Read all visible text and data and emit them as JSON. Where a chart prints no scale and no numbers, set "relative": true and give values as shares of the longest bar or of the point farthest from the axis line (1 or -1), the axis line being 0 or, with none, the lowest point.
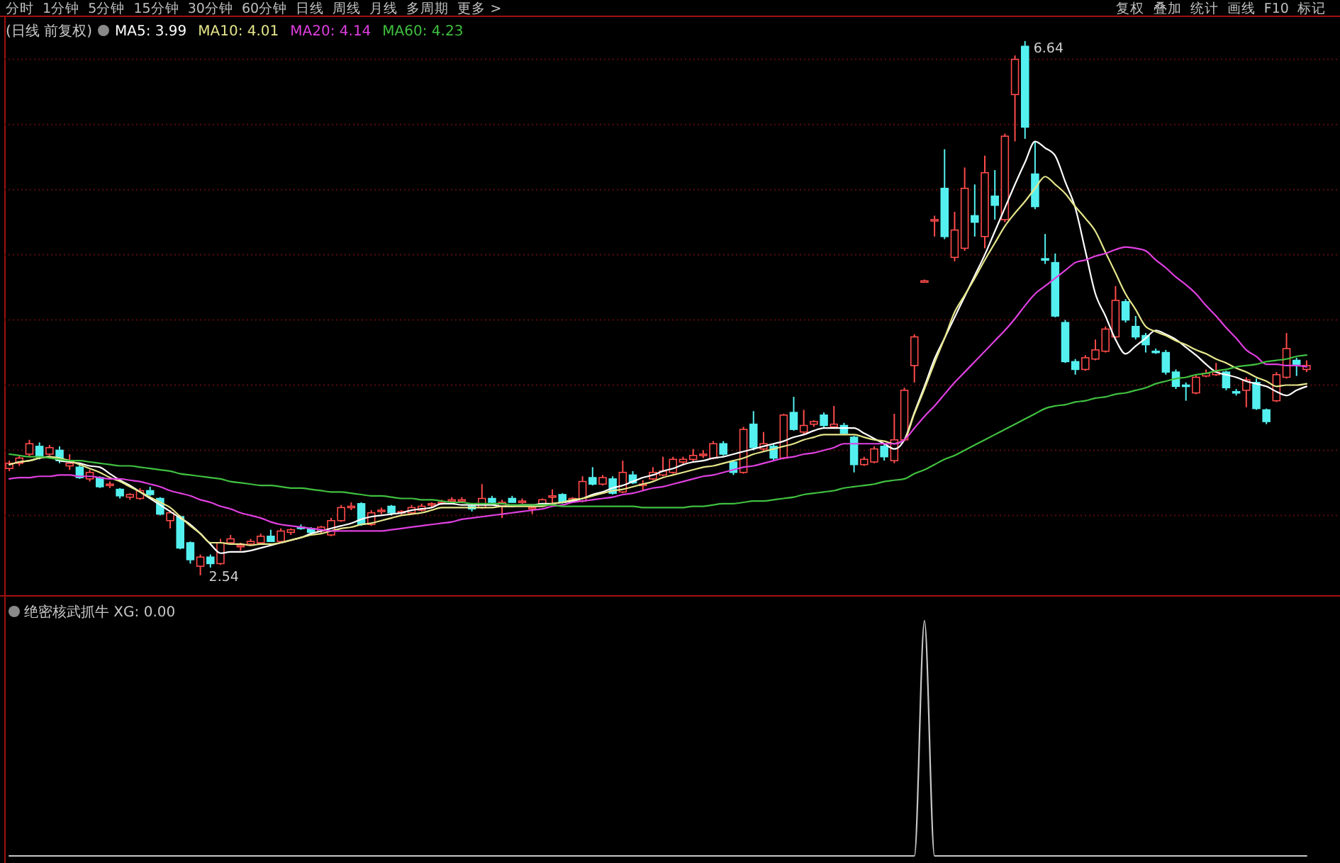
{
  "chart_data": [
    {
      "type": "candlestick",
      "title": "(日线 前复权)",
      "legend": "top left",
      "grid": "y",
      "yticks": [
        {
          "value": 3.0,
          "label": null
        },
        {
          "value": 3.5,
          "label": null
        },
        {
          "value": 4.0,
          "label": null
        },
        {
          "value": 4.5,
          "label": null
        },
        {
          "value": 5.0,
          "label": null
        },
        {
          "value": 5.5,
          "label": null
        },
        {
          "value": 6.0,
          "label": null
        },
        {
          "value": 6.5,
          "label": null
        }
      ],
      "categories": [
        null,
        null,
        null,
        null,
        null,
        null,
        null,
        null,
        null,
        null,
        null,
        null,
        null,
        null,
        null,
        null,
        null,
        null,
        null,
        null,
        null,
        null,
        null,
        null,
        null,
        null,
        null,
        null,
        null,
        null,
        null,
        null,
        null,
        null,
        null,
        null,
        null,
        null,
        null,
        null,
        null,
        null,
        null,
        null,
        null,
        null,
        null,
        null,
        null,
        null,
        null,
        null,
        null,
        null,
        null,
        null,
        null,
        null,
        null,
        null,
        null,
        null,
        null,
        null,
        null,
        null,
        null,
        null,
        null,
        null,
        null,
        null,
        null,
        null,
        null,
        null,
        null,
        null,
        null,
        null,
        null,
        null,
        null,
        null,
        null,
        null,
        null,
        null,
        null,
        null,
        null,
        null,
        null,
        null,
        null,
        null,
        null,
        null,
        null,
        null,
        null,
        null,
        null,
        null,
        null,
        null,
        null,
        null,
        null,
        null,
        null,
        null,
        null,
        null,
        null,
        null,
        null,
        null,
        null,
        null,
        null,
        null,
        null,
        null,
        null,
        null,
        null,
        null,
        null,
        null
      ],
      "ohlc": [
        [
          3.36,
          3.42,
          3.34,
          3.4
        ],
        [
          3.4,
          3.46,
          3.38,
          3.44
        ],
        [
          3.47,
          3.58,
          3.45,
          3.55
        ],
        [
          3.53,
          3.56,
          3.43,
          3.45
        ],
        [
          3.47,
          3.54,
          3.46,
          3.52
        ],
        [
          3.5,
          3.53,
          3.4,
          3.42
        ],
        [
          3.38,
          3.47,
          3.35,
          3.4
        ],
        [
          3.37,
          3.39,
          3.28,
          3.29
        ],
        [
          3.28,
          3.35,
          3.26,
          3.33
        ],
        [
          3.29,
          3.3,
          3.21,
          3.22
        ],
        [
          3.23,
          3.26,
          3.21,
          3.24
        ],
        [
          3.2,
          3.21,
          3.13,
          3.15
        ],
        [
          3.14,
          3.17,
          3.12,
          3.16
        ],
        [
          3.13,
          3.21,
          3.12,
          3.19
        ],
        [
          3.19,
          3.22,
          3.15,
          3.16
        ],
        [
          3.13,
          3.14,
          3.0,
          3.01
        ],
        [
          2.96,
          3.04,
          2.9,
          3.02
        ],
        [
          2.99,
          3.0,
          2.74,
          2.75
        ],
        [
          2.79,
          2.8,
          2.63,
          2.66
        ],
        [
          2.61,
          2.7,
          2.54,
          2.68
        ],
        [
          2.68,
          2.7,
          2.6,
          2.63
        ],
        [
          2.63,
          2.82,
          2.62,
          2.79
        ],
        [
          2.79,
          2.85,
          2.78,
          2.82
        ],
        [
          2.76,
          2.79,
          2.73,
          2.77
        ],
        [
          2.78,
          2.82,
          2.77,
          2.8
        ],
        [
          2.79,
          2.86,
          2.78,
          2.84
        ],
        [
          2.84,
          2.89,
          2.8,
          2.8
        ],
        [
          2.8,
          2.9,
          2.79,
          2.88
        ],
        [
          2.87,
          2.9,
          2.85,
          2.89
        ],
        [
          2.91,
          2.93,
          2.89,
          2.9
        ],
        [
          2.9,
          2.91,
          2.86,
          2.87
        ],
        [
          2.88,
          2.92,
          2.86,
          2.91
        ],
        [
          2.85,
          2.98,
          2.84,
          2.96
        ],
        [
          2.96,
          3.08,
          2.95,
          3.06
        ],
        [
          3.06,
          3.1,
          3.04,
          3.07
        ],
        [
          3.09,
          3.1,
          2.92,
          2.93
        ],
        [
          2.93,
          3.04,
          2.92,
          3.02
        ],
        [
          3.03,
          3.06,
          3.01,
          3.04
        ],
        [
          3.07,
          3.08,
          3.0,
          3.02
        ],
        [
          3.02,
          3.04,
          3.0,
          3.03
        ],
        [
          3.02,
          3.08,
          3.01,
          3.06
        ],
        [
          3.04,
          3.09,
          3.03,
          3.07
        ],
        [
          3.08,
          3.1,
          3.06,
          3.09
        ],
        [
          3.1,
          3.12,
          3.08,
          3.1
        ],
        [
          3.11,
          3.14,
          3.1,
          3.12
        ],
        [
          3.12,
          3.14,
          3.1,
          3.12
        ],
        [
          3.07,
          3.09,
          3.03,
          3.05
        ],
        [
          3.06,
          3.24,
          3.05,
          3.13
        ],
        [
          3.13,
          3.15,
          3.09,
          3.1
        ],
        [
          3.07,
          3.12,
          2.98,
          3.1
        ],
        [
          3.13,
          3.15,
          3.1,
          3.1
        ],
        [
          3.11,
          3.13,
          3.09,
          3.11
        ],
        [
          3.05,
          3.07,
          3.01,
          3.06
        ],
        [
          3.08,
          3.13,
          3.07,
          3.12
        ],
        [
          3.15,
          3.2,
          3.08,
          3.15
        ],
        [
          3.16,
          3.17,
          3.09,
          3.1
        ],
        [
          3.11,
          3.14,
          3.1,
          3.13
        ],
        [
          3.11,
          3.3,
          3.1,
          3.26
        ],
        [
          3.29,
          3.37,
          3.23,
          3.24
        ],
        [
          3.24,
          3.31,
          3.23,
          3.29
        ],
        [
          3.28,
          3.3,
          3.16,
          3.17
        ],
        [
          3.18,
          3.42,
          3.17,
          3.33
        ],
        [
          3.31,
          3.34,
          3.24,
          3.25
        ],
        [
          3.23,
          3.27,
          3.19,
          3.24
        ],
        [
          3.28,
          3.37,
          3.27,
          3.33
        ],
        [
          3.31,
          3.45,
          3.3,
          3.34
        ],
        [
          3.33,
          3.45,
          3.32,
          3.43
        ],
        [
          3.41,
          3.45,
          3.39,
          3.43
        ],
        [
          3.43,
          3.51,
          3.41,
          3.46
        ],
        [
          3.46,
          3.5,
          3.44,
          3.47
        ],
        [
          3.44,
          3.57,
          3.43,
          3.55
        ],
        [
          3.55,
          3.57,
          3.46,
          3.47
        ],
        [
          3.41,
          3.42,
          3.31,
          3.33
        ],
        [
          3.33,
          3.68,
          3.32,
          3.66
        ],
        [
          3.7,
          3.8,
          3.5,
          3.52
        ],
        [
          3.51,
          3.64,
          3.49,
          3.55
        ],
        [
          3.53,
          3.55,
          3.42,
          3.44
        ],
        [
          3.44,
          3.78,
          3.43,
          3.77
        ],
        [
          3.79,
          3.91,
          3.65,
          3.66
        ],
        [
          3.64,
          3.81,
          3.62,
          3.69
        ],
        [
          3.7,
          3.73,
          3.68,
          3.72
        ],
        [
          3.77,
          3.79,
          3.67,
          3.69
        ],
        [
          3.68,
          3.84,
          3.67,
          3.7
        ],
        [
          3.69,
          3.71,
          3.62,
          3.63
        ],
        [
          3.6,
          3.61,
          3.33,
          3.39
        ],
        [
          3.39,
          3.45,
          3.38,
          3.43
        ],
        [
          3.41,
          3.53,
          3.4,
          3.51
        ],
        [
          3.53,
          3.55,
          3.42,
          3.45
        ],
        [
          3.42,
          3.78,
          3.4,
          3.58
        ],
        [
          3.58,
          3.98,
          3.57,
          3.96
        ],
        [
          4.15,
          4.39,
          4.02,
          4.37
        ],
        [
          4.8,
          4.81,
          4.79,
          4.8
        ],
        [
          5.26,
          5.3,
          5.14,
          5.27
        ],
        [
          5.51,
          5.81,
          5.12,
          5.14
        ],
        [
          4.98,
          5.33,
          4.95,
          5.19
        ],
        [
          5.05,
          5.67,
          5.03,
          5.51
        ],
        [
          5.3,
          5.54,
          5.14,
          5.25
        ],
        [
          5.14,
          5.76,
          5.05,
          5.63
        ],
        [
          5.45,
          5.65,
          5.27,
          5.38
        ],
        [
          5.27,
          5.93,
          5.25,
          5.91
        ],
        [
          6.23,
          6.53,
          5.87,
          6.5
        ],
        [
          6.6,
          6.64,
          5.89,
          5.98
        ],
        [
          5.62,
          5.87,
          5.35,
          5.37
        ],
        [
          4.97,
          5.16,
          4.93,
          4.96
        ],
        [
          4.94,
          5.01,
          4.52,
          4.53
        ],
        [
          4.48,
          4.5,
          4.17,
          4.18
        ],
        [
          4.18,
          4.2,
          4.08,
          4.12
        ],
        [
          4.12,
          4.23,
          4.11,
          4.21
        ],
        [
          4.2,
          4.35,
          4.19,
          4.27
        ],
        [
          4.26,
          4.45,
          4.25,
          4.43
        ],
        [
          4.37,
          4.76,
          4.36,
          4.65
        ],
        [
          4.64,
          4.66,
          4.48,
          4.5
        ],
        [
          4.45,
          4.53,
          4.35,
          4.37
        ],
        [
          4.38,
          4.4,
          4.25,
          4.31
        ],
        [
          4.26,
          4.28,
          4.24,
          4.25
        ],
        [
          4.25,
          4.27,
          4.08,
          4.1
        ],
        [
          4.1,
          4.12,
          3.97,
          3.99
        ],
        [
          4.0,
          4.02,
          3.88,
          3.99
        ],
        [
          3.94,
          4.08,
          3.93,
          4.06
        ],
        [
          4.07,
          4.12,
          4.06,
          4.09
        ],
        [
          4.08,
          4.17,
          4.07,
          4.1
        ],
        [
          4.1,
          4.11,
          3.96,
          3.98
        ],
        [
          3.95,
          3.97,
          3.92,
          3.94
        ],
        [
          3.96,
          4.06,
          3.83,
          4.04
        ],
        [
          4.02,
          4.05,
          3.81,
          3.82
        ],
        [
          3.81,
          3.82,
          3.7,
          3.72
        ],
        [
          3.88,
          4.1,
          3.87,
          4.08
        ],
        [
          4.06,
          4.4,
          4.05,
          4.28
        ],
        [
          4.19,
          4.21,
          4.07,
          4.16
        ],
        [
          4.12,
          4.19,
          4.1,
          4.15
        ]
      ],
      "series": [
        {
          "type": "line",
          "name": "MA5: 3.99",
          "color": "#ffffff",
          "values": [
            3.39,
            3.41,
            3.42,
            3.44,
            3.45,
            3.42,
            3.41,
            3.4,
            3.38,
            3.37,
            3.32,
            3.27,
            3.23,
            3.18,
            3.13,
            3.08,
            3.03,
            2.98,
            2.93,
            2.86,
            2.78,
            2.71,
            2.72,
            2.72,
            2.73,
            2.75,
            2.77,
            2.79,
            2.81,
            2.83,
            2.86,
            2.88,
            2.9,
            2.92,
            2.94,
            2.97,
            2.99,
            3.0,
            3.01,
            3.02,
            3.04,
            3.05,
            3.06,
            3.09,
            3.09,
            3.08,
            3.08,
            3.08,
            3.08,
            3.07,
            3.07,
            3.08,
            3.08,
            3.09,
            3.09,
            3.1,
            3.11,
            3.13,
            3.16,
            3.18,
            3.21,
            3.23,
            3.26,
            3.29,
            3.31,
            3.34,
            3.36,
            3.39,
            3.41,
            3.42,
            3.44,
            3.45,
            3.47,
            3.49,
            3.51,
            3.53,
            3.55,
            3.57,
            3.6,
            3.62,
            3.65,
            3.67,
            3.67,
            3.67,
            3.67,
            3.63,
            3.59,
            3.55,
            3.51,
            3.58,
            3.79,
            3.99,
            4.2,
            4.36,
            4.52,
            4.68,
            4.84,
            5.0,
            5.18,
            5.36,
            5.54,
            5.71,
            5.87,
            5.82,
            5.76,
            5.56,
            5.36,
            5.03,
            4.7,
            4.53,
            4.35,
            4.24,
            4.3,
            4.36,
            4.42,
            4.39,
            4.35,
            4.29,
            4.23,
            4.16,
            4.1,
            4.08,
            4.06,
            4.03,
            4.01,
            3.99,
            3.95,
            3.92,
            3.96,
            3.99
          ]
        },
        {
          "type": "line",
          "name": "MA10: 4.01",
          "color": "#e6e68c",
          "values": [
            3.39,
            3.41,
            3.42,
            3.44,
            3.45,
            3.44,
            3.42,
            3.39,
            3.36,
            3.33,
            3.29,
            3.26,
            3.22,
            3.18,
            3.14,
            3.1,
            3.06,
            2.99,
            2.92,
            2.86,
            2.79,
            2.79,
            2.78,
            2.78,
            2.77,
            2.78,
            2.78,
            2.79,
            2.81,
            2.83,
            2.85,
            2.86,
            2.88,
            2.9,
            2.91,
            2.93,
            2.94,
            2.96,
            2.98,
            3.0,
            3.01,
            3.02,
            3.04,
            3.06,
            3.06,
            3.06,
            3.06,
            3.06,
            3.06,
            3.07,
            3.07,
            3.07,
            3.07,
            3.07,
            3.09,
            3.1,
            3.12,
            3.13,
            3.15,
            3.17,
            3.19,
            3.2,
            3.22,
            3.24,
            3.26,
            3.29,
            3.31,
            3.33,
            3.35,
            3.37,
            3.38,
            3.4,
            3.42,
            3.44,
            3.47,
            3.49,
            3.51,
            3.53,
            3.55,
            3.58,
            3.6,
            3.62,
            3.62,
            3.62,
            3.62,
            3.6,
            3.58,
            3.57,
            3.55,
            3.58,
            3.78,
            3.97,
            4.17,
            4.36,
            4.56,
            4.69,
            4.82,
            4.96,
            5.09,
            5.22,
            5.32,
            5.41,
            5.51,
            5.6,
            5.54,
            5.47,
            5.37,
            5.28,
            5.18,
            5.02,
            4.86,
            4.7,
            4.58,
            4.45,
            4.41,
            4.38,
            4.34,
            4.31,
            4.27,
            4.24,
            4.2,
            4.17,
            4.13,
            4.1,
            4.06,
            4.03,
            3.99,
            4.0,
            4.0,
            4.01
          ]
        },
        {
          "type": "line",
          "name": "MA20: 4.14",
          "color": "#e040e0",
          "values": [
            3.28,
            3.29,
            3.29,
            3.3,
            3.3,
            3.31,
            3.31,
            3.3,
            3.3,
            3.29,
            3.28,
            3.28,
            3.27,
            3.26,
            3.24,
            3.22,
            3.19,
            3.17,
            3.15,
            3.12,
            3.1,
            3.07,
            3.05,
            3.02,
            3.0,
            2.98,
            2.95,
            2.93,
            2.92,
            2.91,
            2.9,
            2.89,
            2.88,
            2.88,
            2.88,
            2.88,
            2.88,
            2.88,
            2.89,
            2.9,
            2.91,
            2.92,
            2.93,
            2.94,
            2.95,
            2.97,
            2.98,
            2.99,
            3.0,
            3.01,
            3.02,
            3.03,
            3.04,
            3.05,
            3.07,
            3.08,
            3.1,
            3.11,
            3.12,
            3.13,
            3.14,
            3.16,
            3.17,
            3.19,
            3.21,
            3.22,
            3.24,
            3.26,
            3.28,
            3.3,
            3.31,
            3.33,
            3.35,
            3.37,
            3.38,
            3.4,
            3.42,
            3.44,
            3.45,
            3.47,
            3.48,
            3.5,
            3.52,
            3.55,
            3.55,
            3.55,
            3.55,
            3.55,
            3.55,
            3.58,
            3.67,
            3.76,
            3.84,
            3.93,
            4.02,
            4.1,
            4.18,
            4.26,
            4.34,
            4.42,
            4.51,
            4.61,
            4.7,
            4.76,
            4.82,
            4.88,
            4.94,
            4.96,
            4.99,
            5.01,
            5.04,
            5.06,
            5.05,
            5.03,
            4.96,
            4.9,
            4.83,
            4.77,
            4.7,
            4.61,
            4.53,
            4.44,
            4.36,
            4.27,
            4.22,
            4.16,
            4.16,
            4.15,
            4.15,
            4.14
          ]
        },
        {
          "type": "line",
          "name": "MA60: 4.23",
          "color": "#40c040",
          "values": [
            3.47,
            3.46,
            3.45,
            3.45,
            3.44,
            3.43,
            3.42,
            3.42,
            3.41,
            3.4,
            3.39,
            3.38,
            3.38,
            3.37,
            3.36,
            3.35,
            3.34,
            3.32,
            3.31,
            3.3,
            3.29,
            3.28,
            3.26,
            3.25,
            3.24,
            3.23,
            3.23,
            3.22,
            3.21,
            3.21,
            3.2,
            3.19,
            3.18,
            3.18,
            3.17,
            3.16,
            3.15,
            3.15,
            3.14,
            3.13,
            3.13,
            3.12,
            3.12,
            3.11,
            3.1,
            3.1,
            3.09,
            3.09,
            3.09,
            3.09,
            3.08,
            3.08,
            3.08,
            3.08,
            3.08,
            3.07,
            3.07,
            3.07,
            3.07,
            3.07,
            3.07,
            3.07,
            3.07,
            3.06,
            3.06,
            3.06,
            3.06,
            3.06,
            3.07,
            3.07,
            3.08,
            3.09,
            3.09,
            3.1,
            3.11,
            3.11,
            3.12,
            3.13,
            3.14,
            3.16,
            3.17,
            3.18,
            3.19,
            3.21,
            3.22,
            3.23,
            3.24,
            3.26,
            3.27,
            3.28,
            3.32,
            3.35,
            3.39,
            3.43,
            3.46,
            3.5,
            3.54,
            3.58,
            3.62,
            3.66,
            3.7,
            3.74,
            3.78,
            3.82,
            3.84,
            3.85,
            3.87,
            3.88,
            3.9,
            3.91,
            3.93,
            3.94,
            3.96,
            3.98,
            4.01,
            4.03,
            4.05,
            4.06,
            4.08,
            4.09,
            4.11,
            4.12,
            4.14,
            4.15,
            4.16,
            4.18,
            4.19,
            4.2,
            4.22,
            4.23
          ]
        }
      ],
      "annotations": [
        "分时  1分钟  5分钟  15分钟  30分钟  60分钟  日线  周线  月线  多周期  更多 >",
        "复权  叠加  统计  画线  F10  标记",
        "6.64",
        "2.54"
      ]
    },
    {
      "type": "line",
      "title": "绝密核武抓牛 XG: 0.00",
      "relative": true,
      "categories": [
        null,
        null,
        null,
        null,
        null,
        null,
        null,
        null,
        null,
        null,
        null,
        null,
        null,
        null,
        null,
        null,
        null,
        null,
        null,
        null,
        null,
        null,
        null,
        null,
        null,
        null,
        null,
        null,
        null,
        null,
        null,
        null,
        null,
        null,
        null,
        null,
        null,
        null,
        null,
        null,
        null,
        null,
        null,
        null,
        null,
        null,
        null,
        null,
        null,
        null,
        null,
        null,
        null,
        null,
        null,
        null,
        null,
        null,
        null,
        null,
        null,
        null,
        null,
        null,
        null,
        null,
        null,
        null,
        null,
        null,
        null,
        null,
        null,
        null,
        null,
        null,
        null,
        null,
        null,
        null,
        null,
        null,
        null,
        null,
        null,
        null,
        null,
        null,
        null,
        null,
        null,
        null,
        null,
        null,
        null,
        null,
        null,
        null,
        null,
        null,
        null,
        null,
        null,
        null,
        null,
        null,
        null,
        null,
        null,
        null,
        null,
        null,
        null,
        null,
        null,
        null,
        null,
        null,
        null,
        null,
        null,
        null,
        null,
        null,
        null,
        null,
        null,
        null,
        null,
        null
      ],
      "series": [
        {
          "color": "#c8c8c8",
          "values": [
            0,
            0,
            0,
            0,
            0,
            0,
            0,
            0,
            0,
            0,
            0,
            0,
            0,
            0,
            0,
            0,
            0,
            0,
            0,
            0,
            0,
            0,
            0,
            0,
            0,
            0,
            0,
            0,
            0,
            0,
            0,
            0,
            0,
            0,
            0,
            0,
            0,
            0,
            0,
            0,
            0,
            0,
            0,
            0,
            0,
            0,
            0,
            0,
            0,
            0,
            0,
            0,
            0,
            0,
            0,
            0,
            0,
            0,
            0,
            0,
            0,
            0,
            0,
            0,
            0,
            0,
            0,
            0,
            0,
            0,
            0,
            0,
            0,
            0,
            0,
            0,
            0,
            0,
            0,
            0,
            0,
            0,
            0,
            0,
            0,
            0,
            0,
            0,
            0,
            0,
            0,
            1,
            0,
            0,
            0,
            0,
            0,
            0,
            0,
            0,
            0,
            0,
            0,
            0,
            0,
            0,
            0,
            0,
            0,
            0,
            0,
            0,
            0,
            0,
            0,
            0,
            0,
            0,
            0,
            0,
            0,
            0,
            0,
            0,
            0,
            0,
            0,
            0,
            0,
            0
          ]
        }
      ]
    }
  ]
}
